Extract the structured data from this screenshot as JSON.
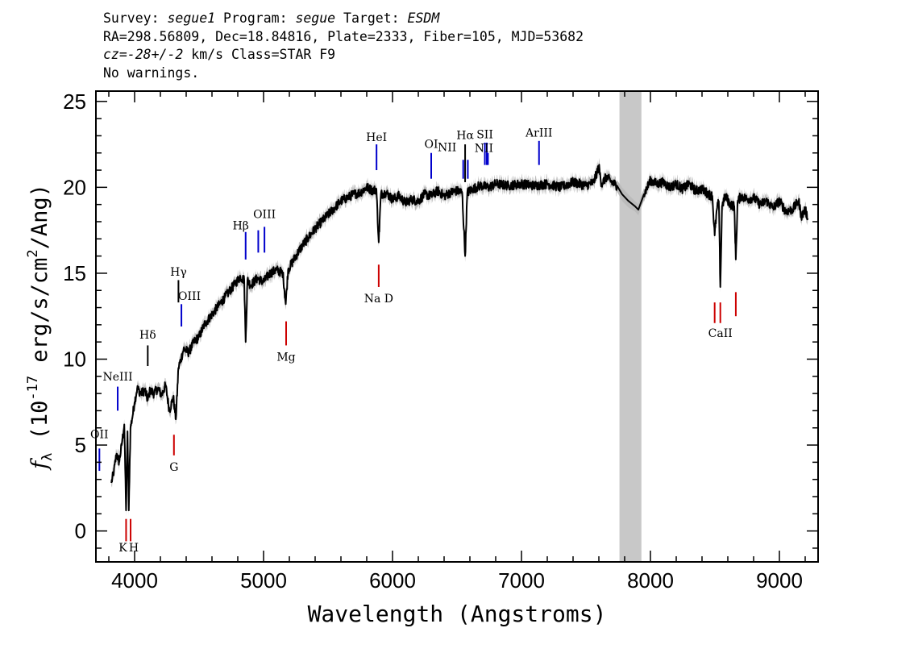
{
  "header": {
    "line1": [
      {
        "t": "Survey: ",
        "i": false
      },
      {
        "t": "segue1",
        "i": true
      },
      {
        "t": " Program: ",
        "i": false
      },
      {
        "t": "segue",
        "i": true
      },
      {
        "t": " Target: ",
        "i": false
      },
      {
        "t": "ESDM",
        "i": true
      }
    ],
    "line2": "RA=298.56809, Dec=18.84816, Plate=2333, Fiber=105, MJD=53682",
    "line3": [
      {
        "t": "cz=-28+/-2",
        "i": true
      },
      {
        "t": " km/s Class=STAR F9",
        "i": false
      }
    ],
    "line4": "No warnings."
  },
  "chart_data": {
    "type": "line",
    "xlabel": "Wavelength (Angstroms)",
    "ylabel": "f_λ (10^-17 erg/s/cm^2/Ang)",
    "xlim": [
      3700,
      9300
    ],
    "ylim": [
      -1.8,
      25.6
    ],
    "x_ticks": [
      4000,
      5000,
      6000,
      7000,
      8000,
      9000
    ],
    "x_minor_step": 200,
    "y_ticks": [
      0,
      5,
      10,
      15,
      20,
      25
    ],
    "y_minor_step": 1,
    "masked_region": [
      7760,
      7930
    ],
    "series": [
      {
        "kind": "spectrum",
        "color": "#000000",
        "error_color": "#bbbbbb",
        "x": [
          3820,
          3840,
          3860,
          3880,
          3900,
          3920,
          3934,
          3945,
          3955,
          3968,
          3980,
          4000,
          4020,
          4050,
          4080,
          4102,
          4120,
          4150,
          4180,
          4210,
          4240,
          4270,
          4300,
          4320,
          4340,
          4360,
          4380,
          4420,
          4460,
          4500,
          4540,
          4580,
          4620,
          4660,
          4700,
          4740,
          4780,
          4820,
          4850,
          4861,
          4875,
          4900,
          4950,
          5000,
          5050,
          5100,
          5150,
          5172,
          5190,
          5250,
          5300,
          5350,
          5400,
          5450,
          5500,
          5550,
          5600,
          5650,
          5700,
          5750,
          5800,
          5850,
          5875,
          5893,
          5910,
          5950,
          6000,
          6050,
          6100,
          6150,
          6200,
          6250,
          6300,
          6350,
          6400,
          6450,
          6500,
          6540,
          6563,
          6580,
          6620,
          6680,
          6750,
          6800,
          6900,
          7000,
          7100,
          7200,
          7300,
          7400,
          7500,
          7560,
          7600,
          7620,
          7660,
          7700,
          7740,
          7780,
          7830,
          7880,
          7906,
          7950,
          8000,
          8050,
          8100,
          8150,
          8200,
          8250,
          8300,
          8350,
          8400,
          8450,
          8480,
          8498,
          8515,
          8530,
          8542,
          8555,
          8580,
          8620,
          8650,
          8662,
          8675,
          8700,
          8750,
          8800,
          8850,
          8900,
          8950,
          9000,
          9050,
          9100,
          9150,
          9170,
          9200,
          9220
        ],
        "y": [
          2.8,
          3.5,
          4.5,
          4.0,
          5.0,
          6.2,
          1.2,
          5.8,
          1.2,
          6.0,
          6.5,
          7.5,
          8.3,
          8.0,
          8.2,
          7.6,
          8.2,
          8.0,
          8.3,
          7.9,
          8.5,
          7.0,
          7.8,
          6.5,
          9.5,
          10.0,
          10.6,
          10.4,
          11.0,
          11.3,
          12.0,
          12.4,
          12.8,
          13.2,
          13.6,
          14.0,
          14.4,
          14.8,
          14.6,
          11.0,
          14.6,
          14.3,
          14.7,
          14.5,
          15.0,
          15.2,
          15.0,
          13.2,
          15.2,
          16.0,
          16.6,
          17.1,
          17.6,
          18.0,
          18.4,
          18.8,
          19.2,
          19.4,
          19.6,
          19.7,
          20.0,
          19.8,
          19.9,
          16.8,
          19.6,
          19.7,
          19.3,
          19.5,
          19.1,
          19.3,
          19.2,
          19.6,
          19.5,
          19.8,
          19.5,
          19.7,
          19.8,
          19.7,
          16.0,
          19.7,
          19.9,
          20.1,
          20.0,
          20.2,
          20.1,
          20.2,
          20.1,
          20.2,
          20.0,
          20.3,
          20.1,
          20.3,
          21.2,
          20.2,
          20.6,
          20.3,
          20.1,
          19.6,
          19.2,
          18.9,
          18.7,
          19.6,
          20.4,
          20.2,
          20.3,
          20.0,
          20.2,
          19.9,
          20.2,
          19.8,
          19.9,
          19.6,
          19.5,
          17.2,
          18.7,
          19.2,
          14.2,
          18.9,
          19.5,
          19.0,
          18.9,
          15.8,
          19.1,
          19.5,
          19.3,
          19.4,
          19.0,
          19.2,
          18.8,
          19.2,
          18.6,
          18.7,
          19.2,
          18.3,
          18.7,
          18.2
        ]
      }
    ],
    "annotations": [
      {
        "label": "OII",
        "x": 3727,
        "y0": 3.5,
        "y1": 4.8,
        "color": "#0000cc",
        "pos": "above",
        "ty": 5.4,
        "dx": 0,
        "tt": "OII"
      },
      {
        "label": "NeIII",
        "x": 3869,
        "y0": 7.0,
        "y1": 8.4,
        "color": "#0000cc",
        "pos": "above",
        "ty": 8.75,
        "dx": 0,
        "tt": "NeIII"
      },
      {
        "label": "K",
        "x": 3934,
        "y0": -0.6,
        "y1": 0.7,
        "color": "#cc0000",
        "pos": "below",
        "ty": -1.2,
        "dx": -4,
        "tt": "K"
      },
      {
        "label": "H",
        "x": 3969,
        "y0": -0.6,
        "y1": 0.7,
        "color": "#cc0000",
        "pos": "below",
        "ty": -1.2,
        "dx": 4,
        "tt": "H"
      },
      {
        "label": "Hδ",
        "x": 4102,
        "y0": 9.6,
        "y1": 10.8,
        "color": "#000000",
        "pos": "above",
        "ty": 11.2,
        "dx": 0,
        "tt": "Hδ"
      },
      {
        "label": "G",
        "x": 4305,
        "y0": 4.4,
        "y1": 5.6,
        "color": "#cc0000",
        "pos": "below",
        "ty": 3.5,
        "dx": 0,
        "tt": "G"
      },
      {
        "label": "Hγ",
        "x": 4340,
        "y0": 13.3,
        "y1": 14.6,
        "color": "#000000",
        "pos": "above",
        "ty": 14.85,
        "dx": 0,
        "tt": "Hγ"
      },
      {
        "label": "OIII",
        "x": 4363,
        "y0": 11.9,
        "y1": 13.2,
        "color": "#0000cc",
        "pos": "above",
        "ty": 13.45,
        "dx": 10,
        "tt": "OIII"
      },
      {
        "label": "Hβ",
        "x": 4861,
        "y0": 15.8,
        "y1": 17.4,
        "color": "#0000cc",
        "pos": "above",
        "ty": 17.55,
        "dx": -6,
        "tt": "Hβ"
      },
      {
        "label": "OIII",
        "x": 4959,
        "y0": 16.2,
        "y1": 17.5,
        "color": "#0000cc",
        "pos": "none",
        "ty": 0,
        "dx": 0,
        "tt": ""
      },
      {
        "label": "OIII",
        "x": 5007,
        "y0": 16.2,
        "y1": 17.7,
        "color": "#0000cc",
        "pos": "above",
        "ty": 18.2,
        "dx": 0,
        "tt": "OIII"
      },
      {
        "label": "Mg",
        "x": 5175,
        "y0": 10.8,
        "y1": 12.2,
        "color": "#cc0000",
        "pos": "below",
        "ty": 9.9,
        "dx": 0,
        "tt": "Mg"
      },
      {
        "label": "HeI",
        "x": 5876,
        "y0": 21.0,
        "y1": 22.5,
        "color": "#0000cc",
        "pos": "above",
        "ty": 22.7,
        "dx": 0,
        "tt": "HeI"
      },
      {
        "label": "Na D",
        "x": 5893,
        "y0": 14.2,
        "y1": 15.5,
        "color": "#cc0000",
        "pos": "below",
        "ty": 13.3,
        "dx": 0,
        "tt": "Na  D"
      },
      {
        "label": "OI",
        "x": 6300,
        "y0": 20.5,
        "y1": 22.0,
        "color": "#0000cc",
        "pos": "above",
        "ty": 22.3,
        "dx": 0,
        "tt": "OI"
      },
      {
        "label": "NII",
        "x": 6548,
        "y0": 20.5,
        "y1": 21.6,
        "color": "#0000cc",
        "pos": "above",
        "ty": 22.1,
        "dx": -20,
        "tt": "NII"
      },
      {
        "label": "Hα",
        "x": 6563,
        "y0": 20.3,
        "y1": 22.5,
        "color": "#000000",
        "pos": "above",
        "ty": 22.8,
        "dx": 0,
        "tt": "Hα"
      },
      {
        "label": "NII",
        "x": 6584,
        "y0": 20.5,
        "y1": 21.6,
        "color": "#0000cc",
        "pos": "none",
        "ty": 0,
        "dx": 0,
        "tt": ""
      },
      {
        "label": "SII",
        "x": 6716,
        "y0": 21.3,
        "y1": 22.6,
        "color": "#0000cc",
        "pos": "above",
        "ty": 22.85,
        "dx": 0,
        "tt": "SII"
      },
      {
        "label": "SII",
        "x": 6731,
        "y0": 21.3,
        "y1": 22.6,
        "color": "#0000cc",
        "pos": "none",
        "ty": 0,
        "dx": 0,
        "tt": ""
      },
      {
        "label": "NII",
        "x": 6740,
        "y0": 21.3,
        "y1": 22.0,
        "color": "#0000cc",
        "pos": "above",
        "ty": 22.05,
        "dx": -5,
        "tt": "NII"
      },
      {
        "label": "ArIII",
        "x": 7136,
        "y0": 21.3,
        "y1": 22.7,
        "color": "#0000cc",
        "pos": "above",
        "ty": 22.95,
        "dx": 0,
        "tt": "ArIII"
      },
      {
        "label": "CaII",
        "x": 8498,
        "y0": 12.1,
        "y1": 13.3,
        "color": "#cc0000",
        "pos": "below",
        "ty": 11.3,
        "dx": 0,
        "tt": ""
      },
      {
        "label": "CaII",
        "x": 8542,
        "y0": 12.1,
        "y1": 13.3,
        "color": "#cc0000",
        "pos": "below",
        "ty": 11.3,
        "dx": 0,
        "tt": "CaII"
      },
      {
        "label": "CaII",
        "x": 8662,
        "y0": 12.5,
        "y1": 13.9,
        "color": "#cc0000",
        "pos": "none",
        "ty": 0,
        "dx": 0,
        "tt": ""
      }
    ]
  }
}
